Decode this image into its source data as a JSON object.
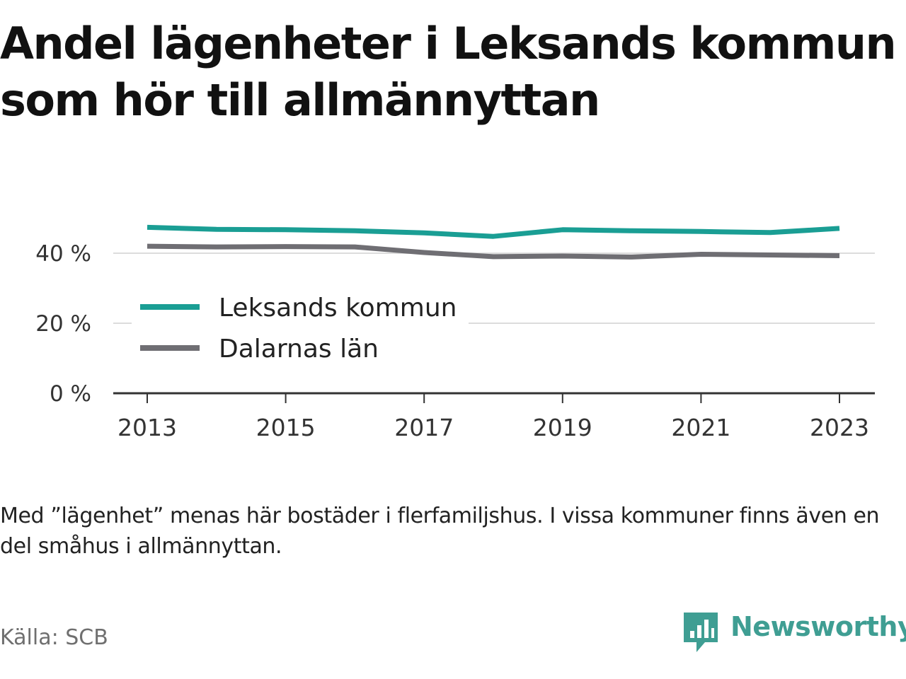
{
  "title": "Andel lägenheter i Leksands kommun som hör till allmännyttan",
  "note": "Med ”lägenhet” menas här bostäder i flerfamiljshus. I vissa kommuner finns även en del småhus i allmännyttan.",
  "source": "Källa: SCB",
  "brand": {
    "name": "Newsworthy",
    "icon": "newsworthy-logo-icon",
    "color": "#3f9e93"
  },
  "chart_data": {
    "type": "line",
    "title": "Andel lägenheter i Leksands kommun som hör till allmännyttan",
    "xlabel": "",
    "ylabel": "",
    "x": [
      2013,
      2014,
      2015,
      2016,
      2017,
      2018,
      2019,
      2020,
      2021,
      2022,
      2023
    ],
    "x_ticks": [
      "2013",
      "2015",
      "2017",
      "2019",
      "2021",
      "2023"
    ],
    "y_ticks": [
      "0 %",
      "20 %",
      "40 %"
    ],
    "ylim": [
      0,
      47
    ],
    "grid": true,
    "legend_position": "left",
    "series": [
      {
        "name": "Leksands kommun",
        "color": "#1a9e94",
        "values": [
          47.4,
          46.8,
          46.7,
          46.4,
          45.8,
          44.8,
          46.7,
          46.4,
          46.2,
          45.9,
          47.1
        ]
      },
      {
        "name": "Dalarnas län",
        "color": "#6f6e73",
        "values": [
          42.0,
          41.8,
          41.9,
          41.8,
          40.2,
          39.0,
          39.2,
          38.9,
          39.7,
          39.5,
          39.3
        ]
      }
    ]
  }
}
